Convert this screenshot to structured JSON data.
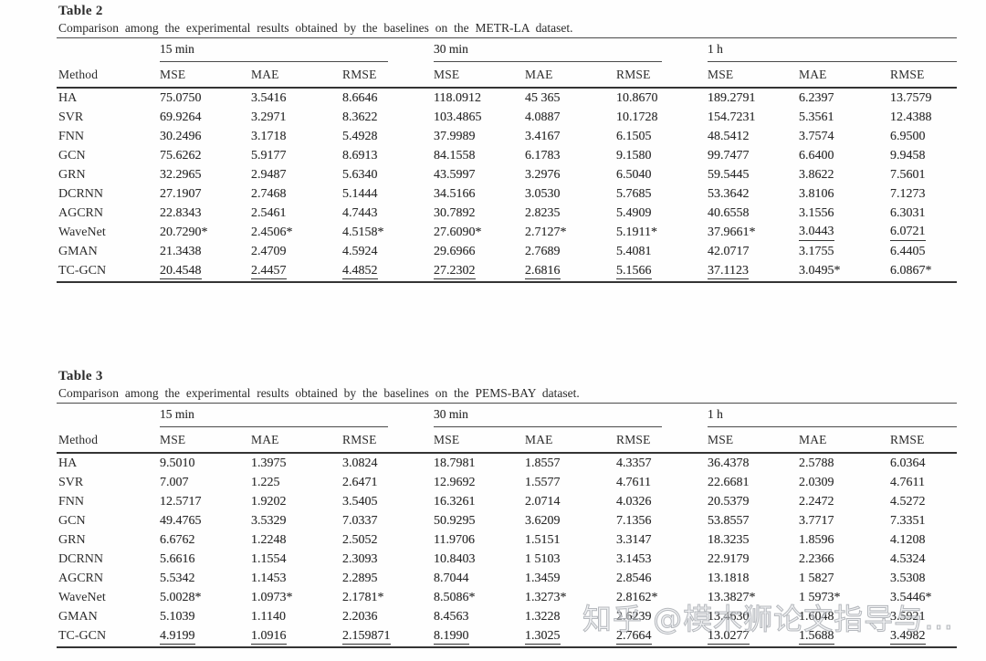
{
  "page": {
    "background": "#fefefe",
    "text_color": "#2b2b2b",
    "rule_color": "#343434"
  },
  "watermark": {
    "text": "知乎 @模木狮论文指导与…"
  },
  "tables": [
    {
      "title": "Table 2",
      "caption": "Comparison among the experimental results obtained by the baselines on the METR-LA dataset.",
      "method_header": "Method",
      "groups": [
        "15 min",
        "30 min",
        "1 h"
      ],
      "metric_headers": [
        "MSE",
        "MAE",
        "RMSE",
        "MSE",
        "MAE",
        "RMSE",
        "MSE",
        "MAE",
        "RMSE"
      ],
      "rows": [
        {
          "method": "HA",
          "cells": [
            {
              "t": "75.0750"
            },
            {
              "t": "3.5416"
            },
            {
              "t": "8.6646"
            },
            {
              "t": "118.0912"
            },
            {
              "t": "45 365"
            },
            {
              "t": "10.8670"
            },
            {
              "t": "189.2791"
            },
            {
              "t": "6.2397"
            },
            {
              "t": "13.7579"
            }
          ]
        },
        {
          "method": "SVR",
          "cells": [
            {
              "t": "69.9264"
            },
            {
              "t": "3.2971"
            },
            {
              "t": "8.3622"
            },
            {
              "t": "103.4865"
            },
            {
              "t": "4.0887"
            },
            {
              "t": "10.1728"
            },
            {
              "t": "154.7231"
            },
            {
              "t": "5.3561"
            },
            {
              "t": "12.4388"
            }
          ]
        },
        {
          "method": "FNN",
          "cells": [
            {
              "t": "30.2496"
            },
            {
              "t": "3.1718"
            },
            {
              "t": "5.4928"
            },
            {
              "t": "37.9989"
            },
            {
              "t": "3.4167"
            },
            {
              "t": "6.1505"
            },
            {
              "t": "48.5412"
            },
            {
              "t": "3.7574"
            },
            {
              "t": "6.9500"
            }
          ]
        },
        {
          "method": "GCN",
          "cells": [
            {
              "t": "75.6262"
            },
            {
              "t": "5.9177"
            },
            {
              "t": "8.6913"
            },
            {
              "t": "84.1558"
            },
            {
              "t": "6.1783"
            },
            {
              "t": "9.1580"
            },
            {
              "t": "99.7477"
            },
            {
              "t": "6.6400"
            },
            {
              "t": "9.9458"
            }
          ]
        },
        {
          "method": "GRN",
          "cells": [
            {
              "t": "32.2965"
            },
            {
              "t": "2.9487"
            },
            {
              "t": "5.6340"
            },
            {
              "t": "43.5997"
            },
            {
              "t": "3.2976"
            },
            {
              "t": "6.5040"
            },
            {
              "t": "59.5445"
            },
            {
              "t": "3.8622"
            },
            {
              "t": "7.5601"
            }
          ]
        },
        {
          "method": "DCRNN",
          "cells": [
            {
              "t": "27.1907"
            },
            {
              "t": "2.7468"
            },
            {
              "t": "5.1444"
            },
            {
              "t": "34.5166"
            },
            {
              "t": "3.0530"
            },
            {
              "t": "5.7685"
            },
            {
              "t": "53.3642"
            },
            {
              "t": "3.8106"
            },
            {
              "t": "7.1273"
            }
          ]
        },
        {
          "method": "AGCRN",
          "cells": [
            {
              "t": "22.8343"
            },
            {
              "t": "2.5461"
            },
            {
              "t": "4.7443"
            },
            {
              "t": "30.7892"
            },
            {
              "t": "2.8235"
            },
            {
              "t": "5.4909"
            },
            {
              "t": "40.6558"
            },
            {
              "t": "3.1556"
            },
            {
              "t": "6.3031"
            }
          ]
        },
        {
          "method": "WaveNet",
          "cells": [
            {
              "t": "20.7290*"
            },
            {
              "t": "2.4506*"
            },
            {
              "t": "4.5158*"
            },
            {
              "t": "27.6090*"
            },
            {
              "t": "2.7127*"
            },
            {
              "t": "5.1911*"
            },
            {
              "t": "37.9661*"
            },
            {
              "t": "3.0443",
              "u": true
            },
            {
              "t": "6.0721",
              "u": true
            }
          ]
        },
        {
          "method": "GMAN",
          "cells": [
            {
              "t": "21.3438"
            },
            {
              "t": "2.4709"
            },
            {
              "t": "4.5924"
            },
            {
              "t": "29.6966"
            },
            {
              "t": "2.7689"
            },
            {
              "t": "5.4081"
            },
            {
              "t": "42.0717"
            },
            {
              "t": "3.1755"
            },
            {
              "t": "6.4405"
            }
          ]
        },
        {
          "method": "TC-GCN",
          "cells": [
            {
              "t": "20.4548",
              "u": true
            },
            {
              "t": "2.4457",
              "u": true
            },
            {
              "t": "4.4852",
              "u": true
            },
            {
              "t": "27.2302",
              "u": true
            },
            {
              "t": "2.6816",
              "u": true
            },
            {
              "t": "5.1566",
              "u": true
            },
            {
              "t": "37.1123",
              "u": true
            },
            {
              "t": "3.0495*"
            },
            {
              "t": "6.0867*"
            }
          ]
        }
      ]
    },
    {
      "title": "Table 3",
      "caption": "Comparison among the experimental results obtained by the baselines on the PEMS-BAY dataset.",
      "method_header": "Method",
      "groups": [
        "15 min",
        "30 min",
        "1 h"
      ],
      "metric_headers": [
        "MSE",
        "MAE",
        "RMSE",
        "MSE",
        "MAE",
        "RMSE",
        "MSE",
        "MAE",
        "RMSE"
      ],
      "rows": [
        {
          "method": "HA",
          "cells": [
            {
              "t": "9.5010"
            },
            {
              "t": "1.3975"
            },
            {
              "t": "3.0824"
            },
            {
              "t": "18.7981"
            },
            {
              "t": "1.8557"
            },
            {
              "t": "4.3357"
            },
            {
              "t": "36.4378"
            },
            {
              "t": "2.5788"
            },
            {
              "t": "6.0364"
            }
          ]
        },
        {
          "method": "SVR",
          "cells": [
            {
              "t": "7.007"
            },
            {
              "t": "1.225"
            },
            {
              "t": "2.6471"
            },
            {
              "t": "12.9692"
            },
            {
              "t": "1.5577"
            },
            {
              "t": "4.7611"
            },
            {
              "t": "22.6681"
            },
            {
              "t": "2.0309"
            },
            {
              "t": "4.7611"
            }
          ]
        },
        {
          "method": "FNN",
          "cells": [
            {
              "t": "12.5717"
            },
            {
              "t": "1.9202"
            },
            {
              "t": "3.5405"
            },
            {
              "t": "16.3261"
            },
            {
              "t": "2.0714"
            },
            {
              "t": "4.0326"
            },
            {
              "t": "20.5379"
            },
            {
              "t": "2.2472"
            },
            {
              "t": "4.5272"
            }
          ]
        },
        {
          "method": "GCN",
          "cells": [
            {
              "t": "49.4765"
            },
            {
              "t": "3.5329"
            },
            {
              "t": "7.0337"
            },
            {
              "t": "50.9295"
            },
            {
              "t": "3.6209"
            },
            {
              "t": "7.1356"
            },
            {
              "t": "53.8557"
            },
            {
              "t": "3.7717"
            },
            {
              "t": "7.3351"
            }
          ]
        },
        {
          "method": "GRN",
          "cells": [
            {
              "t": "6.6762"
            },
            {
              "t": "1.2248"
            },
            {
              "t": "2.5052"
            },
            {
              "t": "11.9706"
            },
            {
              "t": "1.5151"
            },
            {
              "t": "3.3147"
            },
            {
              "t": "18.3235"
            },
            {
              "t": "1.8596"
            },
            {
              "t": "4.1208"
            }
          ]
        },
        {
          "method": "DCRNN",
          "cells": [
            {
              "t": "5.6616"
            },
            {
              "t": "1.1554"
            },
            {
              "t": "2.3093"
            },
            {
              "t": "10.8403"
            },
            {
              "t": "1 5103"
            },
            {
              "t": "3.1453"
            },
            {
              "t": "22.9179"
            },
            {
              "t": "2.2366"
            },
            {
              "t": "4.5324"
            }
          ]
        },
        {
          "method": "AGCRN",
          "cells": [
            {
              "t": "5.5342"
            },
            {
              "t": "1.1453"
            },
            {
              "t": "2.2895"
            },
            {
              "t": "8.7044"
            },
            {
              "t": "1.3459"
            },
            {
              "t": "2.8546"
            },
            {
              "t": "13.1818"
            },
            {
              "t": "1 5827"
            },
            {
              "t": "3.5308"
            }
          ]
        },
        {
          "method": "WaveNet",
          "cells": [
            {
              "t": "5.0028*"
            },
            {
              "t": "1.0973*"
            },
            {
              "t": "2.1781*"
            },
            {
              "t": "8.5086*"
            },
            {
              "t": "1.3273*"
            },
            {
              "t": "2.8162*"
            },
            {
              "t": "13.3827*"
            },
            {
              "t": "1 5973*"
            },
            {
              "t": "3.5446*"
            }
          ]
        },
        {
          "method": "GMAN",
          "cells": [
            {
              "t": "5.1039"
            },
            {
              "t": "1.1140"
            },
            {
              "t": "2.2036"
            },
            {
              "t": "8.4563"
            },
            {
              "t": "1.3228"
            },
            {
              "t": "2.6239"
            },
            {
              "t": "13.4630"
            },
            {
              "t": "1.6048"
            },
            {
              "t": "3.5921"
            }
          ]
        },
        {
          "method": "TC-GCN",
          "cells": [
            {
              "t": "4.9199",
              "u": true
            },
            {
              "t": "1.0916",
              "u": true
            },
            {
              "t": "2.159871",
              "u": true
            },
            {
              "t": "8.1990",
              "u": true
            },
            {
              "t": "1.3025",
              "u": true
            },
            {
              "t": "2.7664",
              "u": true
            },
            {
              "t": "13.0277",
              "u": true
            },
            {
              "t": "1.5688",
              "u": true
            },
            {
              "t": "3.4982",
              "u": true
            }
          ]
        }
      ]
    }
  ]
}
